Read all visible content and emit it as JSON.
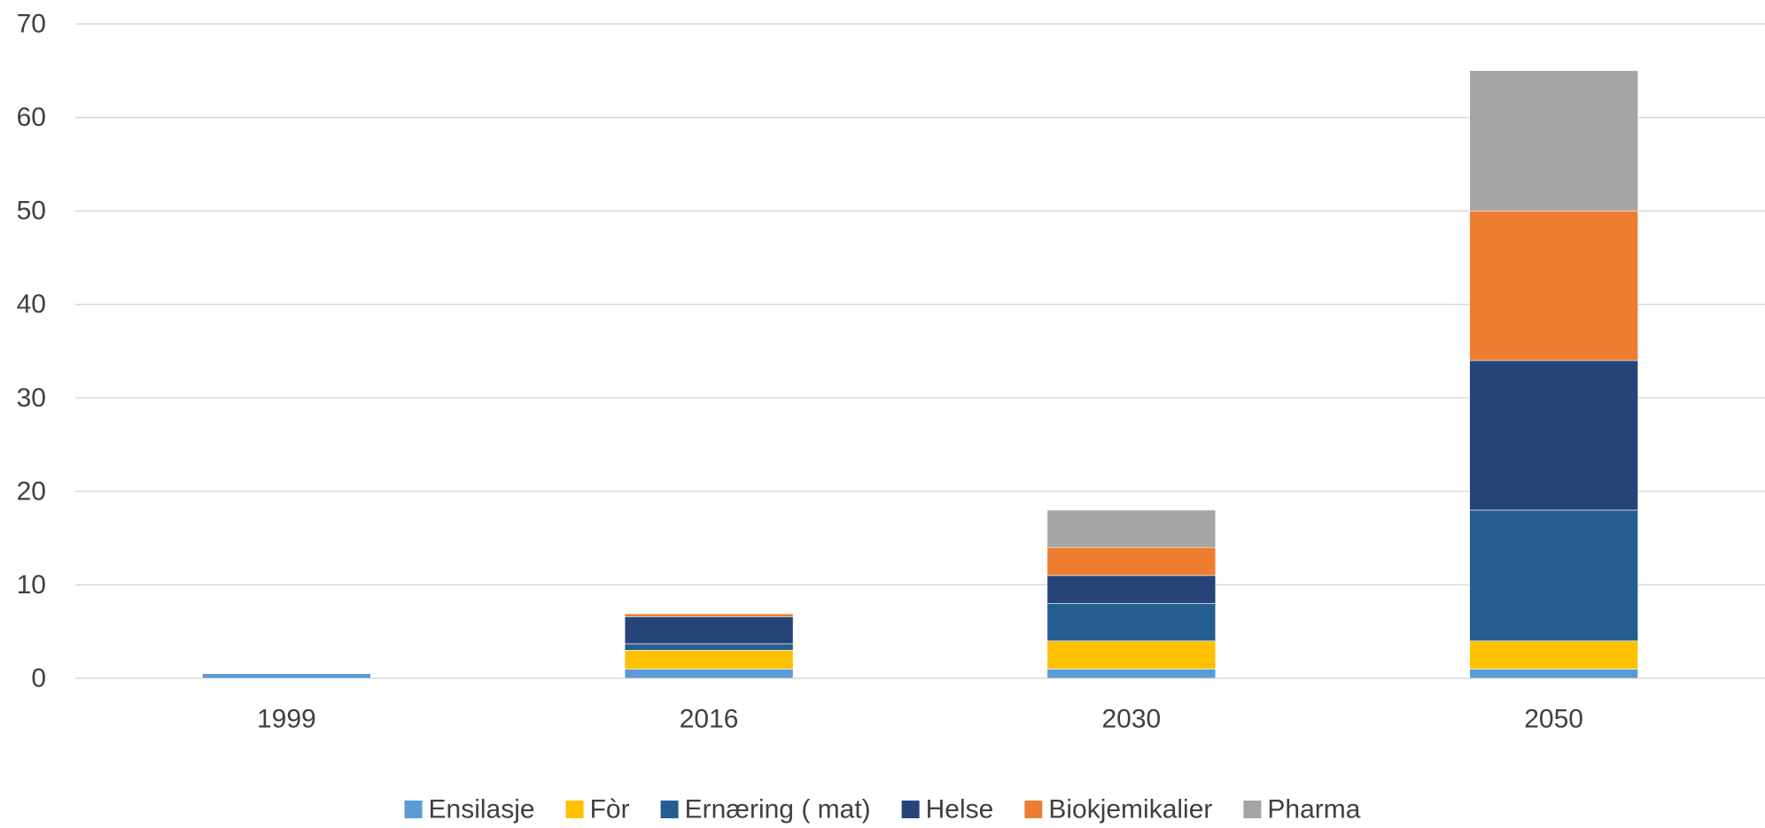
{
  "chart_data": {
    "type": "bar",
    "stacked": true,
    "title": "",
    "xlabel": "",
    "ylabel": "",
    "categories": [
      "1999",
      "2016",
      "2030",
      "2050"
    ],
    "ylim": [
      0,
      70
    ],
    "yticks": [
      0,
      10,
      20,
      30,
      40,
      50,
      60,
      70
    ],
    "grid": true,
    "legend_position": "bottom",
    "series": [
      {
        "name": "Ensilasje",
        "color": "#5B9BD5",
        "values": [
          0.5,
          1,
          1,
          1
        ]
      },
      {
        "name": "Fòr",
        "color": "#FFC000",
        "values": [
          0,
          2,
          3,
          3
        ]
      },
      {
        "name": "Ernæring ( mat)",
        "color": "#255E91",
        "values": [
          0,
          0.7,
          4,
          14
        ]
      },
      {
        "name": "Helse",
        "color": "#264478",
        "values": [
          0,
          2.9,
          3,
          16
        ]
      },
      {
        "name": "Biokjemikalier",
        "color": "#ED7D31",
        "values": [
          0,
          0.3,
          3,
          16
        ]
      },
      {
        "name": "Pharma",
        "color": "#A5A5A5",
        "values": [
          0,
          0,
          4,
          15
        ]
      }
    ]
  }
}
